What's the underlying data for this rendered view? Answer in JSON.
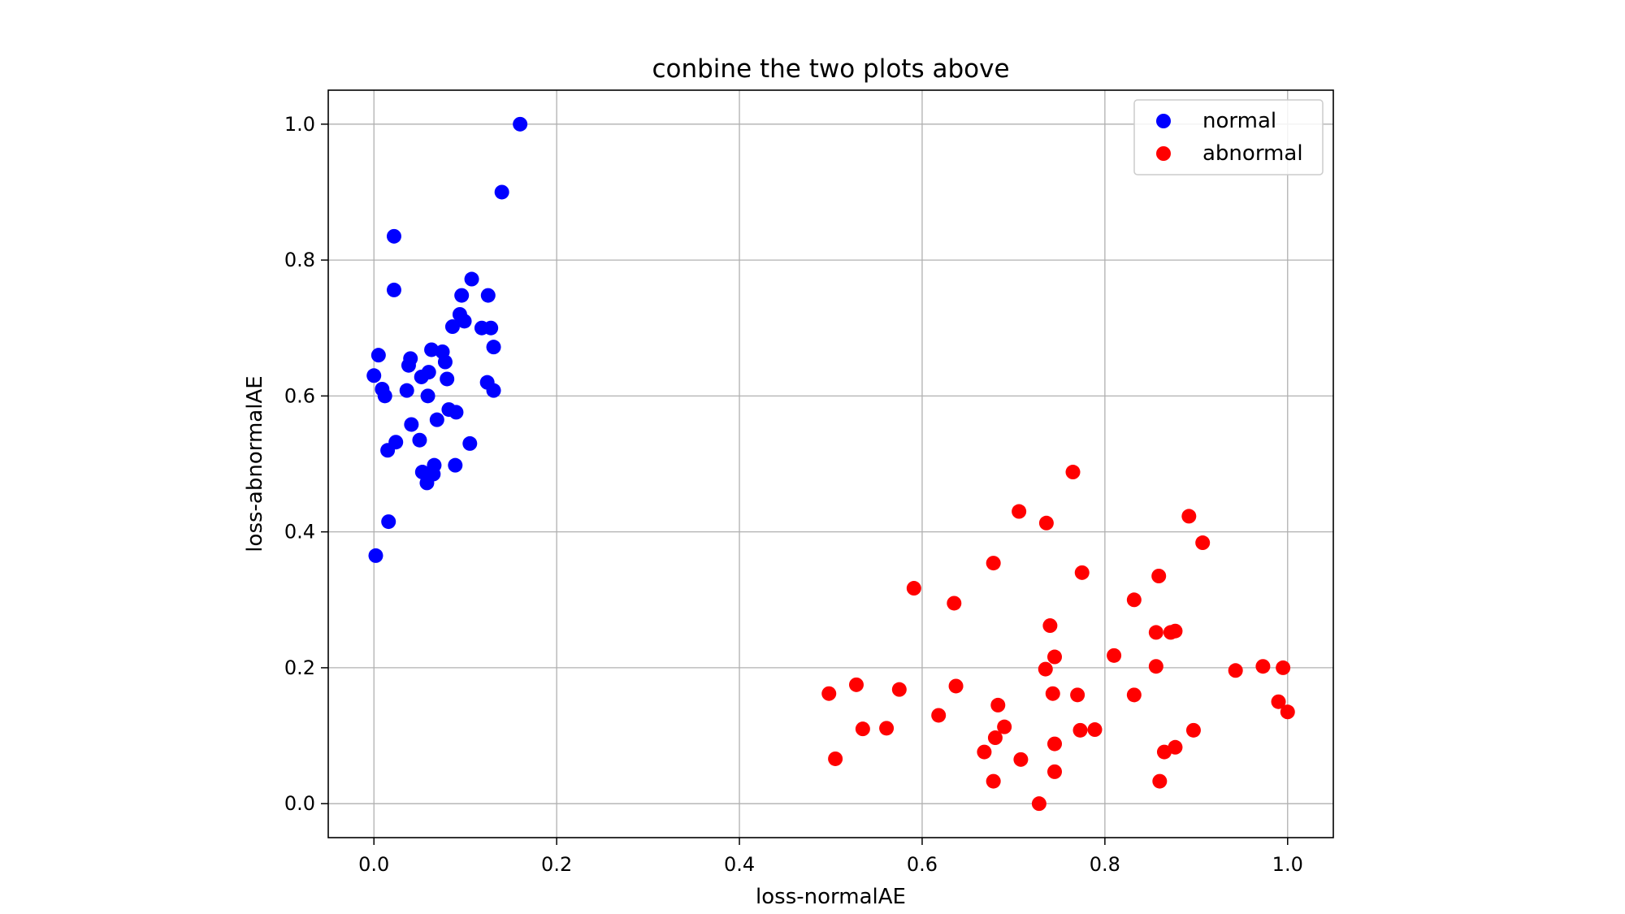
{
  "chart_data": {
    "type": "scatter",
    "title": "conbine the two plots above",
    "xlabel": "loss-normalAE",
    "ylabel": "loss-abnormalAE",
    "xlim": [
      -0.05,
      1.05
    ],
    "ylim": [
      -0.05,
      1.05
    ],
    "xticks": [
      0.0,
      0.2,
      0.4,
      0.6,
      0.8,
      1.0
    ],
    "yticks": [
      0.0,
      0.2,
      0.4,
      0.6,
      0.8,
      1.0
    ],
    "xtick_labels": [
      "0.0",
      "0.2",
      "0.4",
      "0.6",
      "0.8",
      "1.0"
    ],
    "ytick_labels": [
      "0.0",
      "0.2",
      "0.4",
      "0.6",
      "0.8",
      "1.0"
    ],
    "grid": true,
    "legend_position": "top-right",
    "series": [
      {
        "name": "normal",
        "color": "#0000ff",
        "points": [
          [
            0.16,
            1.0
          ],
          [
            0.14,
            0.9
          ],
          [
            0.022,
            0.835
          ],
          [
            0.022,
            0.756
          ],
          [
            0.107,
            0.772
          ],
          [
            0.096,
            0.748
          ],
          [
            0.125,
            0.748
          ],
          [
            0.094,
            0.72
          ],
          [
            0.099,
            0.71
          ],
          [
            0.086,
            0.702
          ],
          [
            0.118,
            0.7
          ],
          [
            0.128,
            0.7
          ],
          [
            0.131,
            0.672
          ],
          [
            0.063,
            0.668
          ],
          [
            0.075,
            0.665
          ],
          [
            0.005,
            0.66
          ],
          [
            0.04,
            0.655
          ],
          [
            0.038,
            0.645
          ],
          [
            0.078,
            0.65
          ],
          [
            0.06,
            0.635
          ],
          [
            0.052,
            0.628
          ],
          [
            0.08,
            0.625
          ],
          [
            0.0,
            0.63
          ],
          [
            0.009,
            0.61
          ],
          [
            0.036,
            0.608
          ],
          [
            0.124,
            0.62
          ],
          [
            0.131,
            0.608
          ],
          [
            0.012,
            0.6
          ],
          [
            0.059,
            0.6
          ],
          [
            0.082,
            0.58
          ],
          [
            0.09,
            0.576
          ],
          [
            0.069,
            0.565
          ],
          [
            0.041,
            0.558
          ],
          [
            0.05,
            0.535
          ],
          [
            0.024,
            0.532
          ],
          [
            0.105,
            0.53
          ],
          [
            0.015,
            0.52
          ],
          [
            0.066,
            0.498
          ],
          [
            0.089,
            0.498
          ],
          [
            0.053,
            0.488
          ],
          [
            0.065,
            0.485
          ],
          [
            0.058,
            0.472
          ],
          [
            0.016,
            0.415
          ],
          [
            0.002,
            0.365
          ]
        ]
      },
      {
        "name": "abnormal",
        "color": "#ff0000",
        "points": [
          [
            0.765,
            0.488
          ],
          [
            0.892,
            0.423
          ],
          [
            0.706,
            0.43
          ],
          [
            0.736,
            0.413
          ],
          [
            0.907,
            0.384
          ],
          [
            0.678,
            0.354
          ],
          [
            0.775,
            0.34
          ],
          [
            0.859,
            0.335
          ],
          [
            0.591,
            0.317
          ],
          [
            0.832,
            0.3
          ],
          [
            0.635,
            0.295
          ],
          [
            0.74,
            0.262
          ],
          [
            0.856,
            0.252
          ],
          [
            0.872,
            0.252
          ],
          [
            0.877,
            0.254
          ],
          [
            0.81,
            0.218
          ],
          [
            0.745,
            0.216
          ],
          [
            0.735,
            0.198
          ],
          [
            0.856,
            0.202
          ],
          [
            0.973,
            0.202
          ],
          [
            0.995,
            0.2
          ],
          [
            0.943,
            0.196
          ],
          [
            0.528,
            0.175
          ],
          [
            0.637,
            0.173
          ],
          [
            0.575,
            0.168
          ],
          [
            0.498,
            0.162
          ],
          [
            0.743,
            0.162
          ],
          [
            0.77,
            0.16
          ],
          [
            0.832,
            0.16
          ],
          [
            0.99,
            0.15
          ],
          [
            1.0,
            0.135
          ],
          [
            0.683,
            0.145
          ],
          [
            0.618,
            0.13
          ],
          [
            0.69,
            0.113
          ],
          [
            0.535,
            0.11
          ],
          [
            0.561,
            0.111
          ],
          [
            0.773,
            0.108
          ],
          [
            0.789,
            0.109
          ],
          [
            0.897,
            0.108
          ],
          [
            0.68,
            0.097
          ],
          [
            0.745,
            0.088
          ],
          [
            0.877,
            0.083
          ],
          [
            0.865,
            0.076
          ],
          [
            0.668,
            0.076
          ],
          [
            0.505,
            0.066
          ],
          [
            0.708,
            0.065
          ],
          [
            0.745,
            0.047
          ],
          [
            0.678,
            0.033
          ],
          [
            0.86,
            0.033
          ],
          [
            0.728,
            0.0
          ]
        ]
      }
    ]
  }
}
